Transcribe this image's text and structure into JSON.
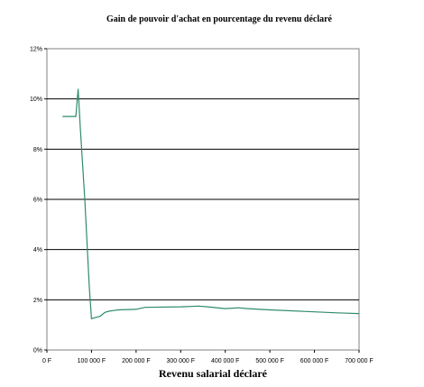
{
  "chart_data": {
    "type": "line",
    "title": "Gain de pouvoir d'achat en pourcentage du revenu déclaré",
    "xlabel": "Revenu salarial déclaré",
    "ylabel": "",
    "xlim": [
      0,
      700000
    ],
    "ylim": [
      0,
      12
    ],
    "grid": "horizontal",
    "x_ticks": [
      0,
      100000,
      200000,
      300000,
      400000,
      500000,
      600000,
      700000
    ],
    "x_tick_labels": [
      "0 F",
      "100 000 F",
      "200 000 F",
      "300 000 F",
      "400 000 F",
      "500 000 F",
      "600 000 F",
      "700 000 F"
    ],
    "y_ticks": [
      0,
      2,
      4,
      6,
      8,
      10,
      12
    ],
    "y_tick_labels": [
      "0%",
      "2%",
      "4%",
      "6%",
      "8%",
      "10%",
      "12%"
    ],
    "line_color": "#2e8b6a",
    "series": [
      {
        "x": [
          35000,
          65000,
          70000,
          75000,
          85000,
          95000,
          100000,
          110000,
          120000,
          130000,
          140000,
          160000,
          200000,
          220000,
          300000,
          340000,
          360000,
          400000,
          430000,
          450000,
          500000,
          600000,
          650000,
          700000
        ],
        "y": [
          9.3,
          9.3,
          10.4,
          8.8,
          6.0,
          2.5,
          1.25,
          1.3,
          1.35,
          1.5,
          1.55,
          1.6,
          1.62,
          1.7,
          1.72,
          1.75,
          1.72,
          1.65,
          1.68,
          1.65,
          1.6,
          1.52,
          1.48,
          1.45
        ]
      }
    ]
  }
}
